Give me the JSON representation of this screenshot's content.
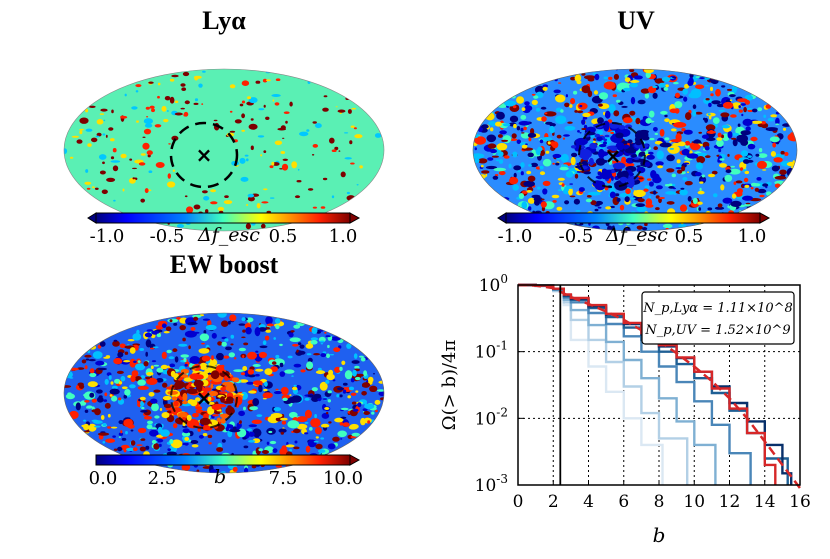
{
  "titles": {
    "lya": "Lyα",
    "uv": "UV",
    "ew": "EW boost"
  },
  "colorbars": {
    "fesc": {
      "label": "Δf_esc",
      "ticks": [
        "-1.0",
        "-0.5",
        "0.5",
        "1.0"
      ]
    },
    "b": {
      "label": "b",
      "ticks": [
        "0.0",
        "2.5",
        "7.5",
        "10.0"
      ]
    }
  },
  "colors": {
    "jet_dark_blue": "#00007f",
    "jet_blue": "#0050ff",
    "jet_cyan": "#40ffc0",
    "jet_mint": "#5af0b4",
    "jet_yellow": "#ffe000",
    "jet_red": "#ff2000",
    "jet_dark_red": "#7f0000",
    "red_curve": "#d62728"
  },
  "chart_data": {
    "type": "line",
    "xlabel": "b",
    "ylabel": "Ω(> b)/4π",
    "xlim": [
      0,
      16
    ],
    "ylim": [
      0.001,
      1
    ],
    "yscale": "log",
    "xticks": [
      "0",
      "2",
      "4",
      "6",
      "8",
      "10",
      "12",
      "14",
      "16"
    ],
    "yticks": [
      "10^0",
      "10^-1",
      "10^-2",
      "10^-3"
    ],
    "vline_x": 2.4,
    "legend": {
      "position": "top-right",
      "lines": [
        "N_p,Lyα = 1.11×10^8",
        "N_p,UV = 1.52×10^9"
      ]
    },
    "series": [
      {
        "name": "s1",
        "color": "#dbe8f3",
        "x": [
          0,
          1,
          2,
          2.6,
          3,
          4,
          5,
          6,
          7,
          8.2
        ],
        "y": [
          1,
          0.97,
          0.8,
          0.5,
          0.15,
          0.06,
          0.025,
          0.01,
          0.004,
          0.001
        ]
      },
      {
        "name": "s2",
        "color": "#b3d0e6",
        "x": [
          0,
          1,
          2,
          2.6,
          3,
          4,
          5,
          6,
          7,
          8,
          9.6
        ],
        "y": [
          1,
          0.97,
          0.82,
          0.55,
          0.3,
          0.15,
          0.07,
          0.03,
          0.012,
          0.005,
          0.001
        ]
      },
      {
        "name": "s3",
        "color": "#7fb0d3",
        "x": [
          0,
          1,
          2,
          2.6,
          3,
          4,
          5,
          6,
          7,
          8,
          9,
          10,
          11.2
        ],
        "y": [
          1,
          0.97,
          0.84,
          0.6,
          0.42,
          0.25,
          0.14,
          0.075,
          0.04,
          0.02,
          0.009,
          0.004,
          0.001
        ]
      },
      {
        "name": "s4",
        "color": "#4a86b8",
        "x": [
          0,
          1,
          2,
          2.6,
          3,
          4,
          5,
          6,
          7,
          8,
          9,
          10,
          11,
          12,
          13.2
        ],
        "y": [
          1,
          0.98,
          0.86,
          0.65,
          0.55,
          0.38,
          0.26,
          0.17,
          0.1,
          0.06,
          0.035,
          0.018,
          0.008,
          0.003,
          0.001
        ]
      },
      {
        "name": "s5",
        "color": "#1f5f94",
        "x": [
          0,
          1,
          2,
          2.6,
          3,
          4,
          5,
          6,
          7,
          8,
          9,
          10,
          11,
          12,
          13,
          14,
          15.3
        ],
        "y": [
          1,
          0.98,
          0.87,
          0.68,
          0.6,
          0.45,
          0.33,
          0.23,
          0.15,
          0.1,
          0.065,
          0.04,
          0.024,
          0.013,
          0.006,
          0.0025,
          0.001
        ]
      },
      {
        "name": "s6",
        "color": "#08306b",
        "x": [
          0,
          1,
          2,
          2.6,
          3,
          4,
          5,
          6,
          7,
          8,
          9,
          10,
          11,
          12,
          13,
          14,
          15,
          15.5
        ],
        "y": [
          1,
          0.98,
          0.88,
          0.7,
          0.62,
          0.48,
          0.36,
          0.26,
          0.18,
          0.12,
          0.08,
          0.05,
          0.03,
          0.017,
          0.009,
          0.004,
          0.0015,
          0.001
        ]
      },
      {
        "name": "red-solid",
        "color": "#d62728",
        "x": [
          0,
          1,
          2,
          2.6,
          3,
          4,
          5,
          6,
          7,
          8,
          9,
          10,
          11,
          12,
          13,
          14,
          14.6
        ],
        "y": [
          1,
          0.98,
          0.88,
          0.72,
          0.64,
          0.5,
          0.37,
          0.27,
          0.19,
          0.125,
          0.082,
          0.05,
          0.028,
          0.014,
          0.006,
          0.002,
          0.001
        ]
      },
      {
        "name": "red-dashed",
        "color": "#d62728",
        "dashed": true,
        "x": [
          0,
          1,
          2,
          3,
          4,
          5,
          6,
          7,
          8,
          9,
          10,
          11,
          12,
          13,
          14,
          15,
          16
        ],
        "y": [
          1,
          0.98,
          0.9,
          0.66,
          0.52,
          0.4,
          0.3,
          0.21,
          0.145,
          0.095,
          0.06,
          0.036,
          0.02,
          0.01,
          0.0045,
          0.002,
          0.0009
        ]
      }
    ]
  }
}
